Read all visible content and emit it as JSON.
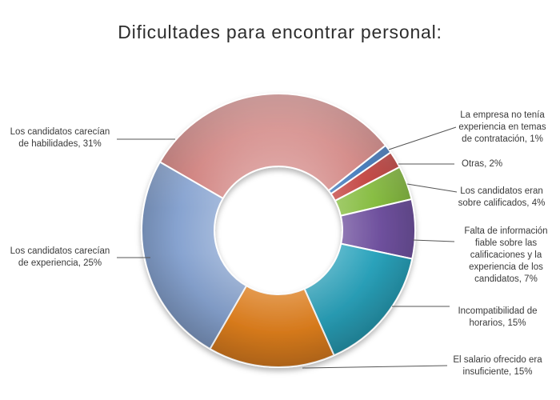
{
  "title": "Dificultades para encontrar personal:",
  "background_color": "#ffffff",
  "chart_data": {
    "type": "pie",
    "subtype": "donut",
    "title": "Dificultades para encontrar personal:",
    "legend_position": "none",
    "labels_style": "outside-callouts",
    "start_angle_deg": 300,
    "direction": "clockwise",
    "leader_line_color": "#555555",
    "label_text_color": "#3a3a3a",
    "slices": [
      {
        "label": "Los candidatos carecían de habilidades",
        "value": 31,
        "color": "#CE7B78",
        "label_lines": [
          "Los candidatos carecían",
          "de habilidades, 31%"
        ]
      },
      {
        "label": "La empresa no tenía experiencia en temas de contratación",
        "value": 1,
        "color": "#3570B6",
        "label_lines": [
          "La empresa no tenía",
          "experiencia en temas",
          "de contratación, 1%"
        ]
      },
      {
        "label": "Otras",
        "value": 2,
        "color": "#C03B37",
        "label_lines": [
          "Otras, 2%"
        ]
      },
      {
        "label": "Los candidatos eran sobre calificados",
        "value": 4,
        "color": "#84BB3D",
        "label_lines": [
          "Los candidatos eran",
          "sobre calificados, 4%"
        ]
      },
      {
        "label": "Falta de información fiable sobre las calificaciones y la experiencia de los candidatos",
        "value": 7,
        "color": "#6F519E",
        "label_lines": [
          "Falta de información",
          "fiable sobre las",
          "calificaciones y la",
          "experiencia de los",
          "candidatos, 7%"
        ]
      },
      {
        "label": "Incompatibilidad de horarios",
        "value": 15,
        "color": "#2AA3BC",
        "label_lines": [
          "Incompatibilidad de",
          "horarios, 15%"
        ]
      },
      {
        "label": "El salario ofrecido era insuficiente",
        "value": 15,
        "color": "#E8841F",
        "label_lines": [
          "El salario ofrecido era",
          "insuficiente, 15%"
        ]
      },
      {
        "label": "Los candidatos carecían de experiencia",
        "value": 25,
        "color": "#87A3D0",
        "label_lines": [
          "Los candidatos carecían",
          "de experiencia, 25%"
        ]
      }
    ]
  }
}
